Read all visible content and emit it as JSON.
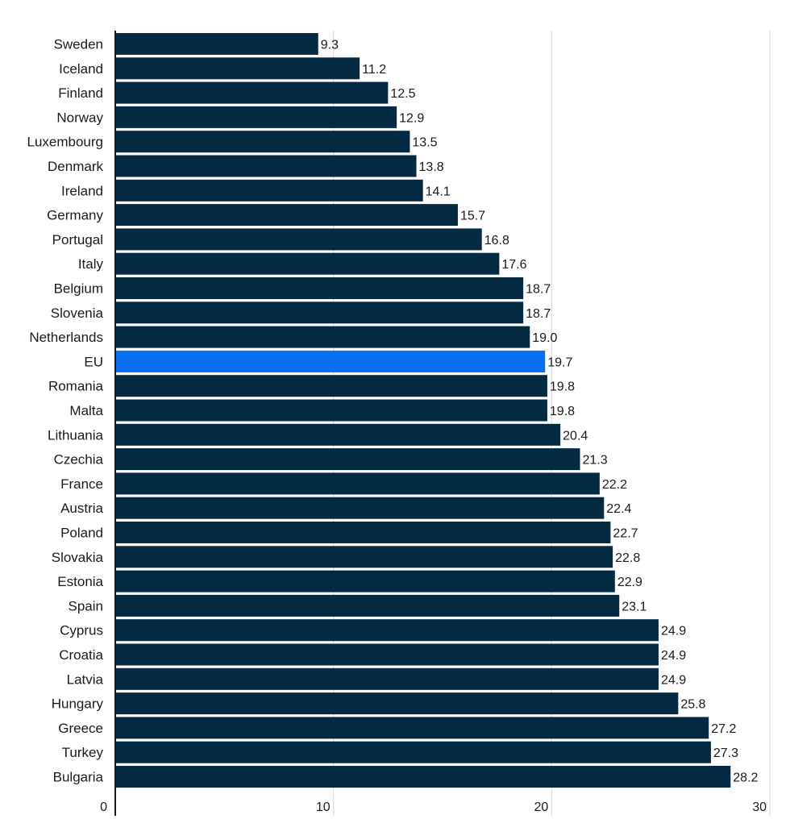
{
  "chart_data": {
    "type": "bar",
    "orientation": "horizontal",
    "categories": [
      "Sweden",
      "Iceland",
      "Finland",
      "Norway",
      "Luxembourg",
      "Denmark",
      "Ireland",
      "Germany",
      "Portugal",
      "Italy",
      "Belgium",
      "Slovenia",
      "Netherlands",
      "EU",
      "Romania",
      "Malta",
      "Lithuania",
      "Czechia",
      "France",
      "Austria",
      "Poland",
      "Slovakia",
      "Estonia",
      "Spain",
      "Cyprus",
      "Croatia",
      "Latvia",
      "Hungary",
      "Greece",
      "Turkey",
      "Bulgaria"
    ],
    "values": [
      9.3,
      11.2,
      12.5,
      12.9,
      13.5,
      13.8,
      14.1,
      15.7,
      16.8,
      17.6,
      18.7,
      18.7,
      19.0,
      19.7,
      19.8,
      19.8,
      20.4,
      21.3,
      22.2,
      22.4,
      22.7,
      22.8,
      22.9,
      23.1,
      24.9,
      24.9,
      24.9,
      25.8,
      27.2,
      27.3,
      28.2
    ],
    "value_labels": [
      "9.3",
      "11.2",
      "12.5",
      "12.9",
      "13.5",
      "13.8",
      "14.1",
      "15.7",
      "16.8",
      "17.6",
      "18.7",
      "18.7",
      "19.0",
      "19.7",
      "19.8",
      "19.8",
      "20.4",
      "21.3",
      "22.2",
      "22.4",
      "22.7",
      "22.8",
      "22.9",
      "23.1",
      "24.9",
      "24.9",
      "24.9",
      "25.8",
      "27.2",
      "27.3",
      "28.2"
    ],
    "highlight_category": "EU",
    "xlim": [
      0,
      30
    ],
    "xticks": [
      "0",
      "10",
      "20",
      "30"
    ],
    "grid": true,
    "title": "",
    "xlabel": "",
    "ylabel": "",
    "colors": {
      "bar": "#022a43",
      "highlight": "#0a6ff2",
      "grid": "#d6d6d6",
      "axis": "#1a1a1a"
    }
  }
}
